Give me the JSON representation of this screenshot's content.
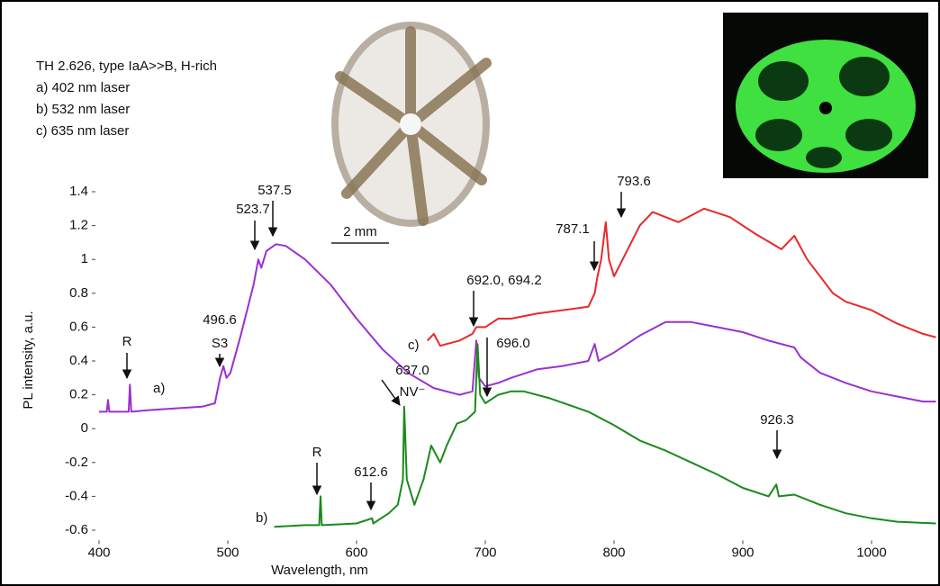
{
  "chart_data": {
    "type": "line",
    "title": "TH 2.626, type IaA>>B, H-rich",
    "x_label": "Wavelength, nm",
    "y_label": "PL intensity, a.u.",
    "scale_bar": "2 mm",
    "xlim": [
      400,
      1050
    ],
    "ylim": [
      -0.65,
      1.45
    ],
    "xticks": [
      400,
      500,
      600,
      700,
      800,
      900,
      1000
    ],
    "yticks": [
      -0.6,
      -0.4,
      -0.2,
      0,
      0.2,
      0.4,
      0.6,
      0.8,
      1,
      1.2,
      1.4
    ],
    "grid": false,
    "series": [
      {
        "name": "a) 402 nm laser",
        "label": "a)",
        "color": "#9b30d0",
        "x": [
          400,
          406,
          407,
          408,
          420,
          423,
          424,
          425,
          440,
          460,
          480,
          490,
          494,
          496.6,
          499,
          502,
          510,
          520,
          523.7,
          526,
          530,
          537.5,
          545,
          560,
          580,
          600,
          620,
          640,
          660,
          680,
          690,
          693,
          695,
          700,
          710,
          720,
          740,
          760,
          780,
          785,
          788,
          800,
          820,
          840,
          860,
          880,
          900,
          920,
          940,
          945,
          960,
          980,
          1000,
          1020,
          1040,
          1050
        ],
        "values": [
          0.1,
          0.1,
          0.17,
          0.1,
          0.1,
          0.1,
          0.26,
          0.1,
          0.11,
          0.12,
          0.13,
          0.15,
          0.3,
          0.37,
          0.3,
          0.33,
          0.55,
          0.85,
          1.0,
          0.95,
          1.05,
          1.09,
          1.08,
          1.0,
          0.85,
          0.65,
          0.47,
          0.33,
          0.24,
          0.2,
          0.22,
          0.52,
          0.3,
          0.25,
          0.27,
          0.3,
          0.35,
          0.37,
          0.4,
          0.5,
          0.4,
          0.45,
          0.55,
          0.63,
          0.63,
          0.6,
          0.57,
          0.52,
          0.48,
          0.42,
          0.33,
          0.27,
          0.22,
          0.19,
          0.16,
          0.16
        ]
      },
      {
        "name": "b) 532 nm laser",
        "label": "b)",
        "color": "#1a8a1a",
        "x": [
          536,
          560,
          571,
          572,
          573,
          600,
          612,
          613,
          625,
          632,
          636,
          637,
          639,
          645,
          652,
          658,
          665,
          670,
          678,
          685,
          692,
          694,
          696,
          700,
          710,
          720,
          730,
          750,
          780,
          800,
          820,
          840,
          860,
          880,
          900,
          920,
          926,
          928,
          940,
          960,
          980,
          1000,
          1020,
          1050
        ],
        "values": [
          -0.58,
          -0.57,
          -0.57,
          -0.4,
          -0.57,
          -0.56,
          -0.53,
          -0.56,
          -0.5,
          -0.45,
          -0.3,
          0.13,
          -0.3,
          -0.45,
          -0.3,
          -0.1,
          -0.2,
          -0.1,
          0.03,
          0.05,
          0.1,
          0.5,
          0.2,
          0.15,
          0.2,
          0.22,
          0.22,
          0.18,
          0.1,
          0.02,
          -0.07,
          -0.13,
          -0.2,
          -0.27,
          -0.35,
          -0.4,
          -0.33,
          -0.4,
          -0.39,
          -0.45,
          -0.5,
          -0.53,
          -0.55,
          -0.56
        ]
      },
      {
        "name": "c) 635 nm laser",
        "label": "c)",
        "color": "#e8282a",
        "x": [
          655,
          660,
          665,
          670,
          680,
          690,
          693,
          700,
          710,
          720,
          740,
          760,
          780,
          785,
          787.1,
          790,
          793.6,
          796,
          800,
          810,
          820,
          830,
          850,
          870,
          890,
          910,
          930,
          940,
          950,
          970,
          980,
          1000,
          1020,
          1040,
          1050
        ],
        "values": [
          0.52,
          0.56,
          0.49,
          0.5,
          0.52,
          0.56,
          0.6,
          0.6,
          0.65,
          0.65,
          0.68,
          0.7,
          0.72,
          0.8,
          0.9,
          1.0,
          1.22,
          1.0,
          0.9,
          1.05,
          1.2,
          1.28,
          1.22,
          1.3,
          1.25,
          1.15,
          1.06,
          1.14,
          1.0,
          0.8,
          0.75,
          0.7,
          0.62,
          0.56,
          0.54
        ]
      }
    ],
    "annotations": [
      "R",
      "496.6",
      "S3",
      "523.7",
      "537.5",
      "692.0, 694.2",
      "787.1",
      "793.6",
      "696.0",
      "637.0",
      "NV⁻",
      "R",
      "612.6",
      "926.3"
    ]
  }
}
